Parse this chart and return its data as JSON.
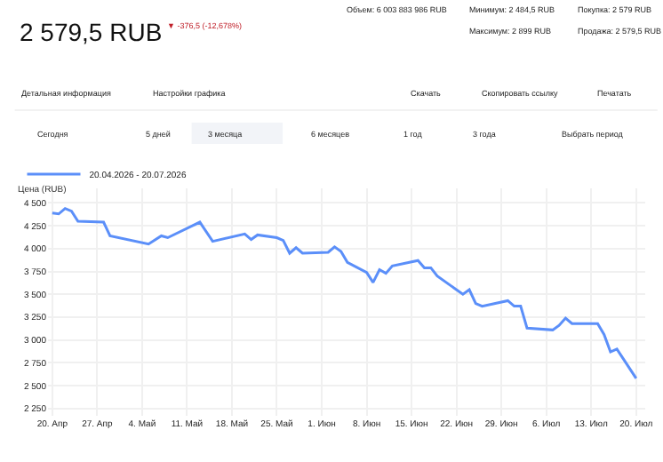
{
  "chart_data": {
    "type": "line",
    "title": "2 579,5 RUB",
    "subtitle": "▼ -376,5 (-12,678%)",
    "ylabel": "Цена (RUB)",
    "annotations": [
      "Объем: 6 003 883 986 RUB",
      "Минимум: 2 484,5 RUB",
      "Максимум: 2 899 RUB",
      "Покупка: 2 579 RUB",
      "Продажа: 2 579,5 RUB",
      "Детальная информация",
      "Настройки графика",
      "Скачать",
      "Скопировать ссылку",
      "Печатать",
      "Сегодня",
      "5 дней",
      "3 месяца",
      "6 месяцев",
      "1 год",
      "3 года",
      "Выбрать период"
    ],
    "x": [
      "2026-04-20",
      "2026-04-21",
      "2026-04-22",
      "2026-04-23",
      "2026-04-24",
      "2026-04-28",
      "2026-04-29",
      "2026-05-05",
      "2026-05-07",
      "2026-05-08",
      "2026-05-13",
      "2026-05-15",
      "2026-05-20",
      "2026-05-21",
      "2026-05-22",
      "2026-05-25",
      "2026-05-26",
      "2026-05-27",
      "2026-05-28",
      "2026-05-29",
      "2026-06-02",
      "2026-06-03",
      "2026-06-04",
      "2026-06-05",
      "2026-06-08",
      "2026-06-09",
      "2026-06-10",
      "2026-06-11",
      "2026-06-12",
      "2026-06-16",
      "2026-06-17",
      "2026-06-18",
      "2026-06-19",
      "2026-06-23",
      "2026-06-24",
      "2026-06-25",
      "2026-06-26",
      "2026-06-30",
      "2026-07-01",
      "2026-07-02",
      "2026-07-03",
      "2026-07-07",
      "2026-07-08",
      "2026-07-09",
      "2026-07-10",
      "2026-07-14",
      "2026-07-15",
      "2026-07-16",
      "2026-07-17",
      "2026-07-20"
    ],
    "series": [
      {
        "name": "20.04.2026 - 20.07.2026",
        "color": "#5b8ff9",
        "values": [
          4390,
          4380,
          4440,
          4410,
          4300,
          4290,
          4140,
          4050,
          4140,
          4120,
          4290,
          4080,
          4160,
          4100,
          4150,
          4120,
          4090,
          3950,
          4010,
          3950,
          3960,
          4020,
          3970,
          3850,
          3740,
          3630,
          3770,
          3730,
          3810,
          3870,
          3790,
          3790,
          3700,
          3500,
          3550,
          3400,
          3370,
          3430,
          3370,
          3370,
          3130,
          3110,
          3160,
          3240,
          3180,
          3180,
          3060,
          2870,
          2900,
          2580
        ]
      }
    ],
    "xlim": [
      "2026-04-19T08:00",
      "2026-07-21T10:00"
    ],
    "xticks": [
      {
        "value": "2026-04-20",
        "label": "20. Апр"
      },
      {
        "value": "2026-04-27",
        "label": "27. Апр"
      },
      {
        "value": "2026-05-04",
        "label": "4. Май"
      },
      {
        "value": "2026-05-11",
        "label": "11. Май"
      },
      {
        "value": "2026-05-18",
        "label": "18. Май"
      },
      {
        "value": "2026-05-25",
        "label": "25. Май"
      },
      {
        "value": "2026-06-01",
        "label": "1. Июн"
      },
      {
        "value": "2026-06-08",
        "label": "8. Июн"
      },
      {
        "value": "2026-06-15",
        "label": "15. Июн"
      },
      {
        "value": "2026-06-22",
        "label": "22. Июн"
      },
      {
        "value": "2026-06-29",
        "label": "29. Июн"
      },
      {
        "value": "2026-07-06",
        "label": "6. Июл"
      },
      {
        "value": "2026-07-13",
        "label": "13. Июл"
      },
      {
        "value": "2026-07-20",
        "label": "20. Июл"
      }
    ],
    "ylim": [
      2170,
      4660
    ],
    "yticks": [
      {
        "value": 2250,
        "label": "2 250"
      },
      {
        "value": 2500,
        "label": "2 500"
      },
      {
        "value": 2750,
        "label": "2 750"
      },
      {
        "value": 3000,
        "label": "3 000"
      },
      {
        "value": 3250,
        "label": "3 250"
      },
      {
        "value": 3500,
        "label": "3 500"
      },
      {
        "value": 3750,
        "label": "3 750"
      },
      {
        "value": 4000,
        "label": "4 000"
      },
      {
        "value": 4250,
        "label": "4 250"
      },
      {
        "value": 4500,
        "label": "4 500"
      }
    ],
    "grid": true,
    "legend": "top left",
    "marker": "none",
    "line_style": "solid"
  }
}
